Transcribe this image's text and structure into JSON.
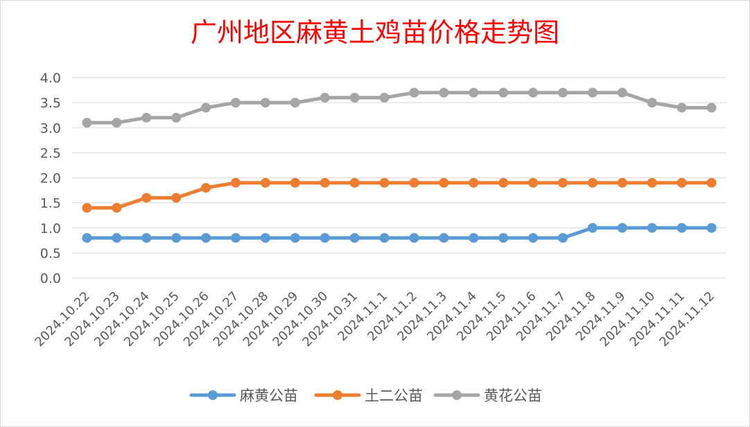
{
  "chart_data": {
    "type": "line",
    "title": "广州地区麻黄土鸡苗价格走势图",
    "xlabel": "",
    "ylabel": "",
    "ylim": [
      0,
      4.0
    ],
    "y_ticks": [
      "0.0",
      "0.5",
      "1.0",
      "1.5",
      "2.0",
      "2.5",
      "3.0",
      "3.5",
      "4.0"
    ],
    "grid": true,
    "legend_position": "bottom",
    "categories": [
      "2024.10.22",
      "2024.10.23",
      "2024.10.24",
      "2024.10.25",
      "2024.10.26",
      "2024.10.27",
      "2024.10.28",
      "2024.10.29",
      "2024.10.30",
      "2024.10.31",
      "2024.11.1",
      "2024.11.2",
      "2024.11.3",
      "2024.11.4",
      "2024.11.5",
      "2024.11.6",
      "2024.11.7",
      "2024.11.8",
      "2024.11.9",
      "2024.11.10",
      "2024.11.11",
      "2024.11.12"
    ],
    "series": [
      {
        "name": "麻黄公苗",
        "color": "#5b9bd5",
        "values": [
          0.8,
          0.8,
          0.8,
          0.8,
          0.8,
          0.8,
          0.8,
          0.8,
          0.8,
          0.8,
          0.8,
          0.8,
          0.8,
          0.8,
          0.8,
          0.8,
          0.8,
          1.0,
          1.0,
          1.0,
          1.0,
          1.0
        ]
      },
      {
        "name": "土二公苗",
        "color": "#ed7d31",
        "values": [
          1.4,
          1.4,
          1.6,
          1.6,
          1.8,
          1.9,
          1.9,
          1.9,
          1.9,
          1.9,
          1.9,
          1.9,
          1.9,
          1.9,
          1.9,
          1.9,
          1.9,
          1.9,
          1.9,
          1.9,
          1.9,
          1.9
        ]
      },
      {
        "name": "黄花公苗",
        "color": "#a5a5a5",
        "values": [
          3.1,
          3.1,
          3.2,
          3.2,
          3.4,
          3.5,
          3.5,
          3.5,
          3.6,
          3.6,
          3.6,
          3.7,
          3.7,
          3.7,
          3.7,
          3.7,
          3.7,
          3.7,
          3.7,
          3.5,
          3.4,
          3.4
        ]
      }
    ]
  }
}
